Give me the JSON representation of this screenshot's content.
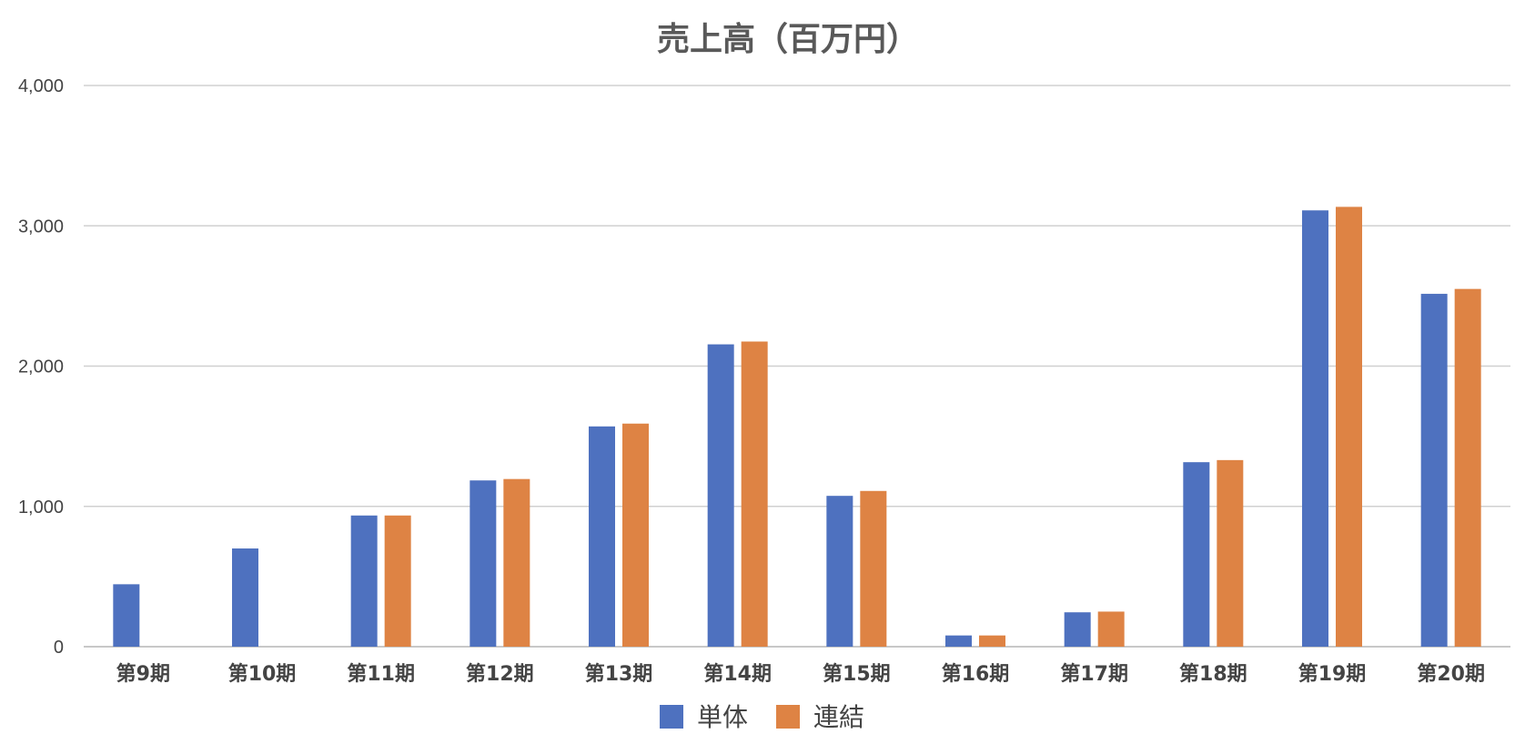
{
  "chart_data": {
    "type": "bar",
    "title": "売上高（百万円）",
    "xlabel": "",
    "ylabel": "",
    "categories": [
      "第9期",
      "第10期",
      "第11期",
      "第12期",
      "第13期",
      "第14期",
      "第15期",
      "第16期",
      "第17期",
      "第18期",
      "第19期",
      "第20期"
    ],
    "series": [
      {
        "name": "単体",
        "color": "#4e71bf",
        "values": [
          445,
          700,
          935,
          1185,
          1570,
          2155,
          1075,
          80,
          245,
          1315,
          3110,
          2515
        ]
      },
      {
        "name": "連結",
        "color": "#de8344",
        "values": [
          null,
          null,
          935,
          1195,
          1590,
          2175,
          1110,
          80,
          250,
          1330,
          3135,
          2550
        ]
      }
    ],
    "ylim": [
      0,
      4000
    ],
    "yticks": [
      0,
      1000,
      2000,
      3000,
      4000
    ],
    "ytick_labels": [
      "0",
      "1,000",
      "2,000",
      "3,000",
      "4,000"
    ],
    "grid": true,
    "legend_position": "bottom"
  }
}
